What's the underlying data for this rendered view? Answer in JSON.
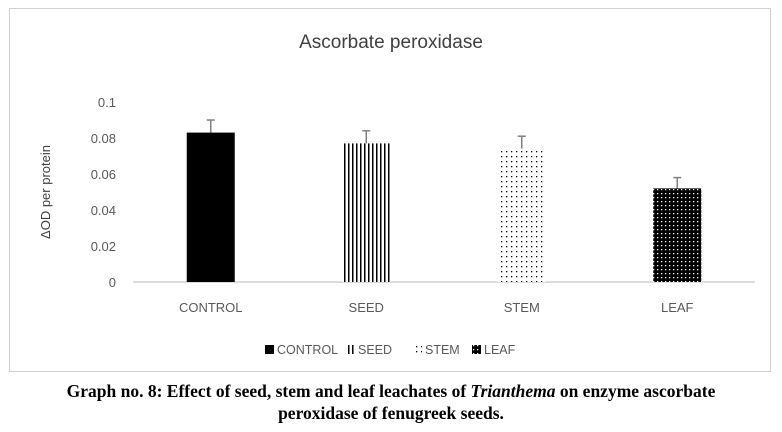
{
  "chart_data": {
    "type": "bar",
    "title": "Ascorbate peroxidase",
    "xlabel": "",
    "ylabel": "ΔOD per protein",
    "ylim": [
      0,
      0.1
    ],
    "yticks": [
      "0",
      "0.02",
      "0.04",
      "0.06",
      "0.08",
      "0.1"
    ],
    "categories": [
      "CONTROL",
      "SEED",
      "STEM",
      "LEAF"
    ],
    "values": [
      0.083,
      0.077,
      0.074,
      0.052
    ],
    "error": [
      0.007,
      0.007,
      0.007,
      0.006
    ],
    "patterns": [
      "solid",
      "vertical-lines",
      "dots",
      "dark-dots"
    ],
    "legend": [
      "CONTROL",
      "SEED",
      "STEM",
      "LEAF"
    ],
    "legend_position": "bottom",
    "grid": false
  },
  "caption": {
    "prefix": "Graph no. 8: Effect of seed, stem and leaf leachates of ",
    "italic": "Trianthema",
    "suffix": " on enzyme ascorbate",
    "line2": "peroxidase of fenugreek seeds."
  }
}
